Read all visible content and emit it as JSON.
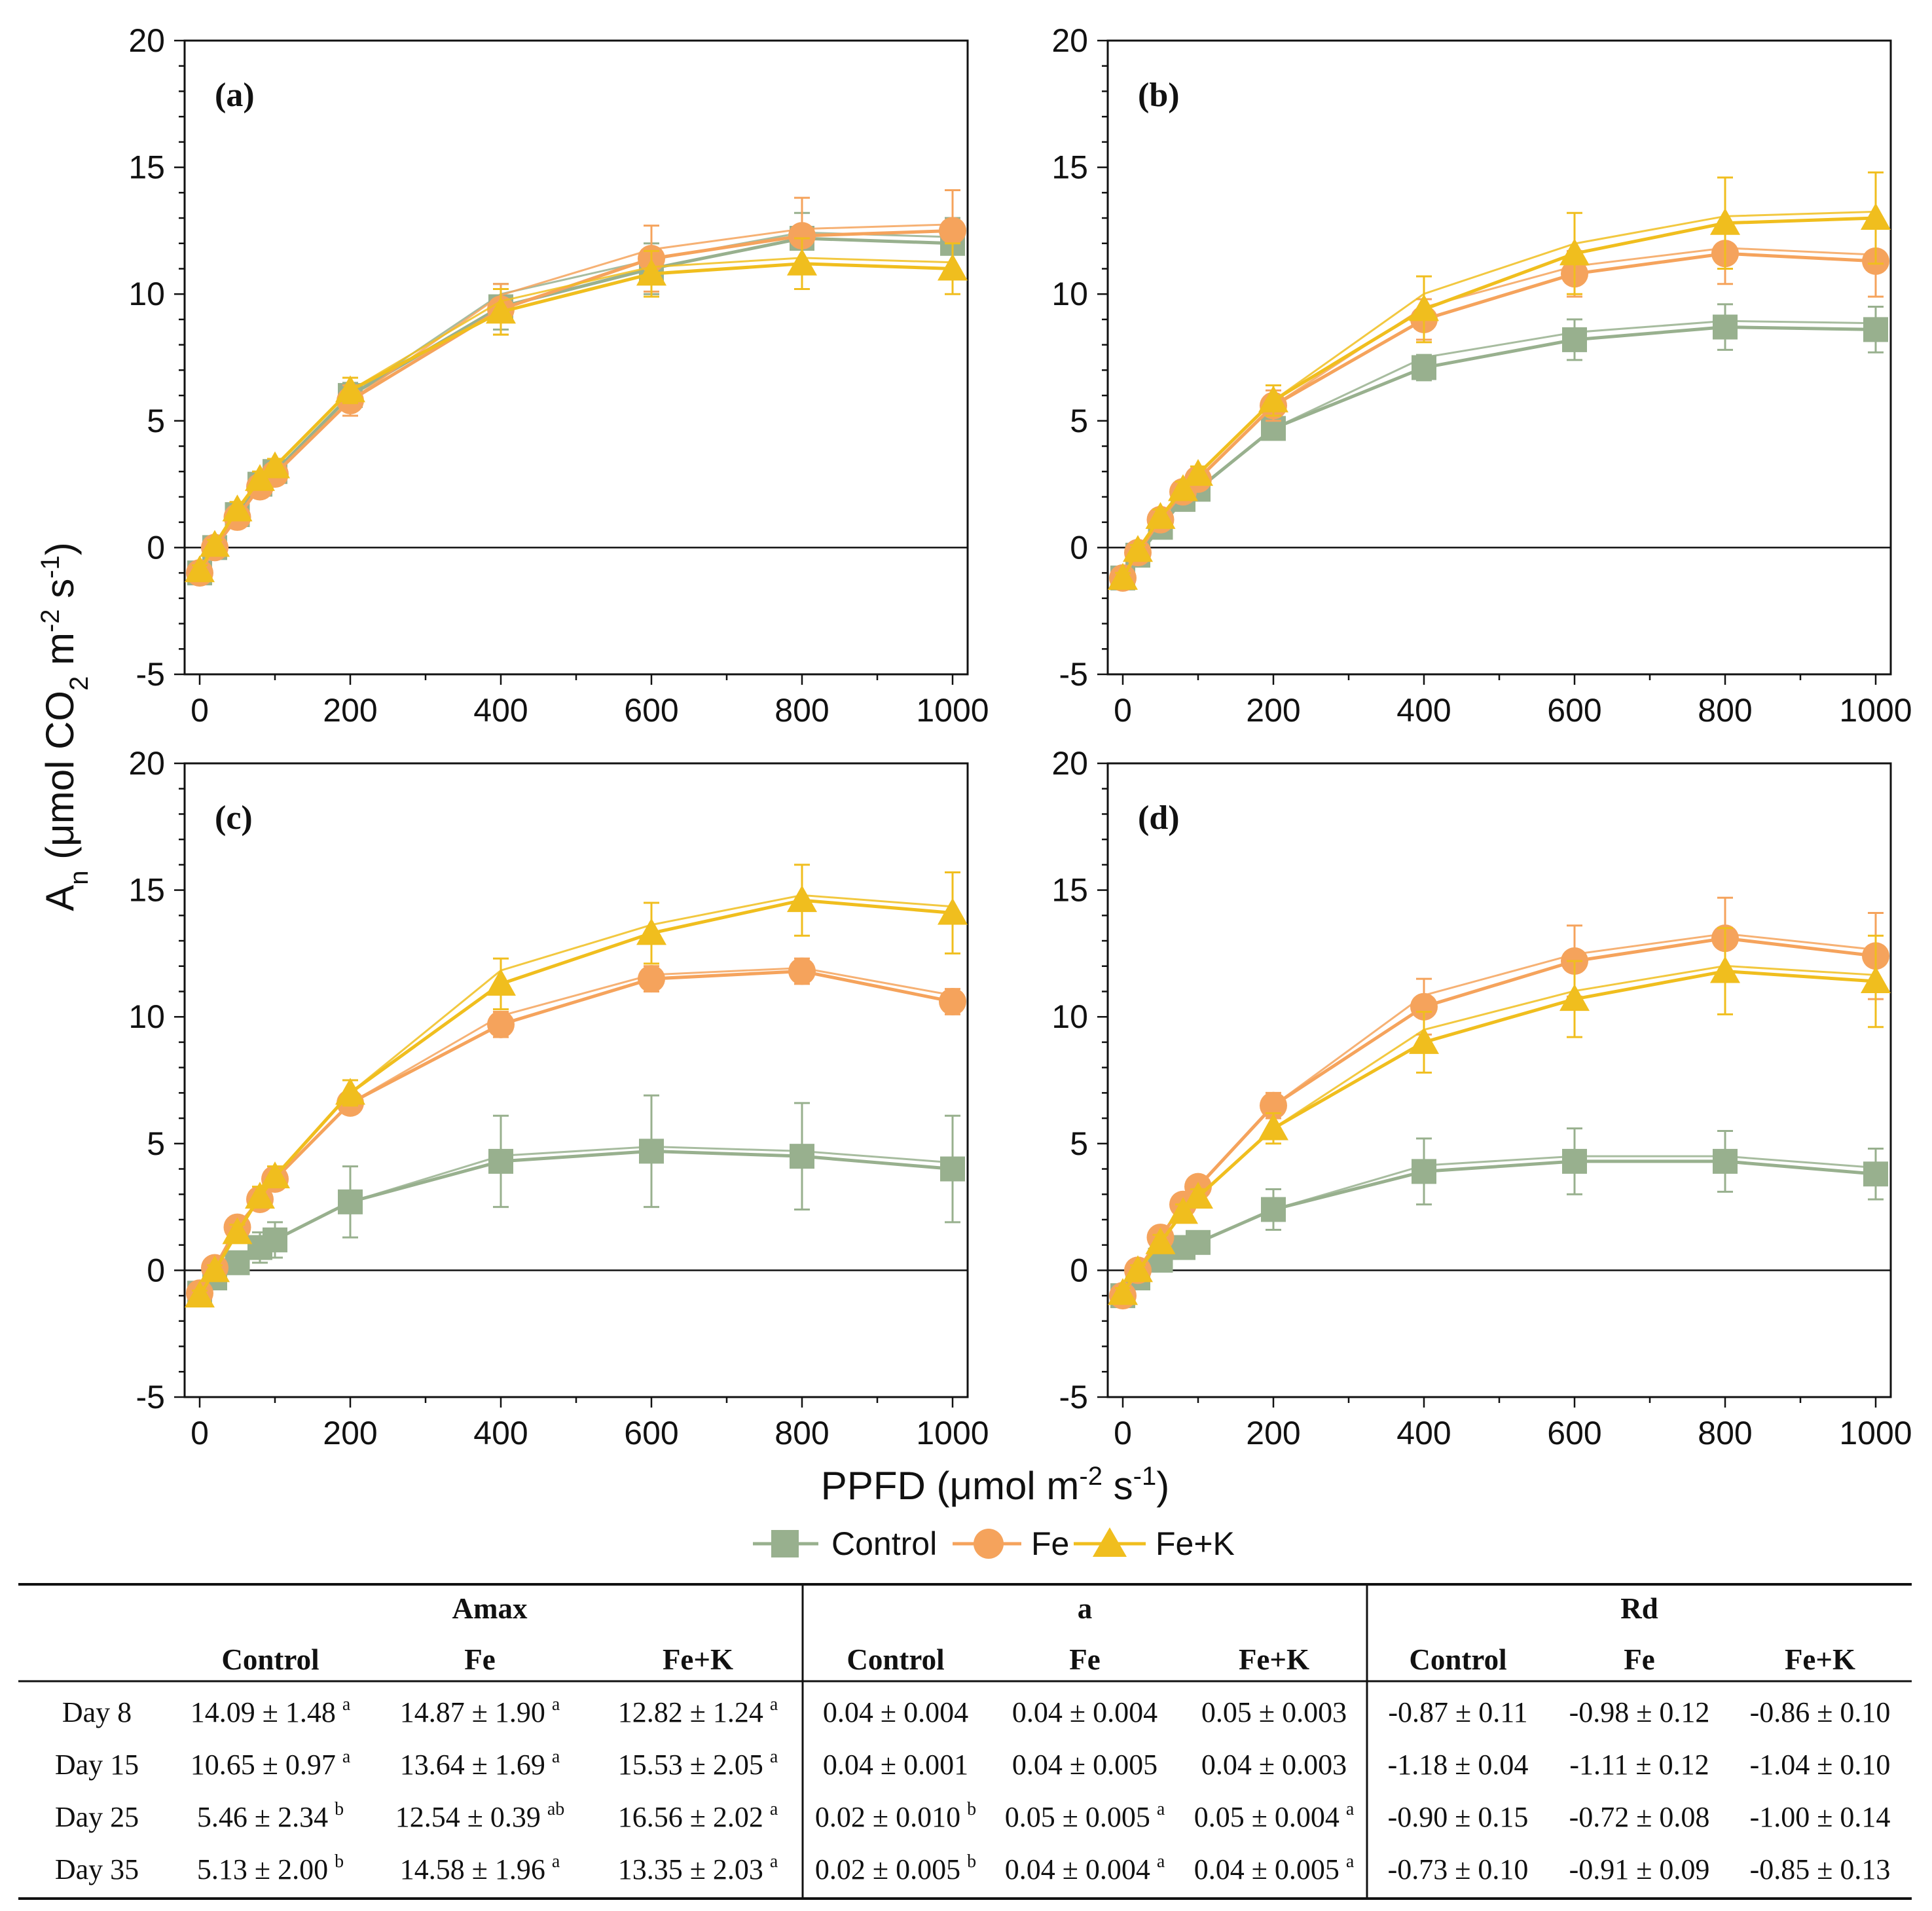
{
  "chart_data": [
    {
      "type": "line",
      "panel_label": "(a)",
      "x": [
        0,
        20,
        50,
        80,
        100,
        200,
        400,
        600,
        800,
        1000
      ],
      "xlim": [
        -20,
        1020
      ],
      "ylim": [
        -5,
        20
      ],
      "xticks": [
        0,
        200,
        400,
        600,
        800,
        1000
      ],
      "yticks": [
        -5,
        0,
        5,
        10,
        15,
        20
      ],
      "series": [
        {
          "name": "Control",
          "values": [
            -1.0,
            0.0,
            1.3,
            2.5,
            3.0,
            6.0,
            9.5,
            11.0,
            12.2,
            12.0
          ],
          "err": [
            0.2,
            0.2,
            0.3,
            0.3,
            0.3,
            0.5,
            0.9,
            1.0,
            1.0,
            1.0
          ]
        },
        {
          "name": "Fe",
          "values": [
            -1.0,
            0.0,
            1.2,
            2.4,
            2.9,
            5.8,
            9.4,
            11.4,
            12.3,
            12.5
          ],
          "err": [
            0.2,
            0.2,
            0.3,
            0.3,
            0.3,
            0.6,
            1.0,
            1.3,
            1.5,
            1.6
          ]
        },
        {
          "name": "Fe+K",
          "values": [
            -0.9,
            0.1,
            1.5,
            2.7,
            3.2,
            6.2,
            9.3,
            10.8,
            11.2,
            11.0
          ],
          "err": [
            0.2,
            0.2,
            0.3,
            0.3,
            0.3,
            0.5,
            0.9,
            0.9,
            1.0,
            1.0
          ]
        }
      ]
    },
    {
      "type": "line",
      "panel_label": "(b)",
      "x": [
        0,
        20,
        50,
        80,
        100,
        200,
        400,
        600,
        800,
        1000
      ],
      "xlim": [
        -20,
        1020
      ],
      "ylim": [
        -5,
        20
      ],
      "xticks": [
        0,
        200,
        400,
        600,
        800,
        1000
      ],
      "yticks": [
        -5,
        0,
        5,
        10,
        15,
        20
      ],
      "series": [
        {
          "name": "Control",
          "values": [
            -1.2,
            -0.3,
            0.8,
            1.9,
            2.3,
            4.7,
            7.1,
            8.2,
            8.7,
            8.6
          ],
          "err": [
            0.2,
            0.2,
            0.2,
            0.3,
            0.3,
            0.3,
            0.5,
            0.8,
            0.9,
            0.9
          ]
        },
        {
          "name": "Fe",
          "values": [
            -1.2,
            -0.2,
            1.1,
            2.2,
            2.7,
            5.6,
            9.0,
            10.8,
            11.6,
            11.3
          ],
          "err": [
            0.2,
            0.2,
            0.3,
            0.3,
            0.3,
            0.6,
            0.8,
            0.9,
            1.2,
            1.4
          ]
        },
        {
          "name": "Fe+K",
          "values": [
            -1.2,
            -0.1,
            1.2,
            2.3,
            2.9,
            5.8,
            9.4,
            11.6,
            12.8,
            13.0
          ],
          "err": [
            0.2,
            0.2,
            0.3,
            0.3,
            0.3,
            0.6,
            1.3,
            1.6,
            1.8,
            1.8
          ]
        }
      ]
    },
    {
      "type": "line",
      "panel_label": "(c)",
      "x": [
        0,
        20,
        50,
        80,
        100,
        200,
        400,
        600,
        800,
        1000
      ],
      "xlim": [
        -20,
        1020
      ],
      "ylim": [
        -5,
        20
      ],
      "xticks": [
        0,
        200,
        400,
        600,
        800,
        1000
      ],
      "yticks": [
        -5,
        0,
        5,
        10,
        15,
        20
      ],
      "series": [
        {
          "name": "Control",
          "values": [
            -0.9,
            -0.3,
            0.3,
            0.9,
            1.2,
            2.7,
            4.3,
            4.7,
            4.5,
            4.0
          ],
          "err": [
            0.2,
            0.3,
            0.4,
            0.6,
            0.7,
            1.4,
            1.8,
            2.2,
            2.1,
            2.1
          ]
        },
        {
          "name": "Fe",
          "values": [
            -0.9,
            0.1,
            1.7,
            2.8,
            3.6,
            6.6,
            9.7,
            11.5,
            11.8,
            10.6
          ],
          "err": [
            0.2,
            0.2,
            0.3,
            0.3,
            0.3,
            0.4,
            0.5,
            0.5,
            0.5,
            0.5
          ]
        },
        {
          "name": "Fe+K",
          "values": [
            -1.0,
            0.0,
            1.5,
            2.9,
            3.7,
            7.0,
            11.3,
            13.3,
            14.6,
            14.1
          ],
          "err": [
            0.2,
            0.2,
            0.3,
            0.4,
            0.4,
            0.5,
            1.0,
            1.2,
            1.4,
            1.6
          ]
        }
      ]
    },
    {
      "type": "line",
      "panel_label": "(d)",
      "x": [
        0,
        20,
        50,
        80,
        100,
        200,
        400,
        600,
        800,
        1000
      ],
      "xlim": [
        -20,
        1020
      ],
      "ylim": [
        -5,
        20
      ],
      "xticks": [
        0,
        200,
        400,
        600,
        800,
        1000
      ],
      "yticks": [
        -5,
        0,
        5,
        10,
        15,
        20
      ],
      "series": [
        {
          "name": "Control",
          "values": [
            -1.0,
            -0.3,
            0.4,
            0.9,
            1.1,
            2.4,
            3.9,
            4.3,
            4.3,
            3.8
          ],
          "err": [
            0.2,
            0.2,
            0.3,
            0.4,
            0.4,
            0.8,
            1.3,
            1.3,
            1.2,
            1.0
          ]
        },
        {
          "name": "Fe",
          "values": [
            -1.0,
            0.0,
            1.3,
            2.6,
            3.3,
            6.5,
            10.4,
            12.2,
            13.1,
            12.4
          ],
          "err": [
            0.2,
            0.2,
            0.3,
            0.3,
            0.3,
            0.5,
            1.1,
            1.4,
            1.6,
            1.7
          ]
        },
        {
          "name": "Fe+K",
          "values": [
            -0.9,
            0.0,
            1.1,
            2.3,
            2.9,
            5.6,
            9.0,
            10.7,
            11.8,
            11.4
          ],
          "err": [
            0.2,
            0.2,
            0.3,
            0.3,
            0.3,
            0.6,
            1.2,
            1.5,
            1.7,
            1.8
          ]
        }
      ]
    }
  ],
  "axes": {
    "y_label_main": "A",
    "y_label_sub": "n",
    "y_label_rest": " (μmol CO",
    "y_label_co2_sub": "2",
    "y_label_m": " m",
    "y_label_m_sup": "-2",
    "y_label_s": " s",
    "y_label_s_sup": "-1",
    "y_label_close": ")",
    "x_label_main": "PPFD (μmol m",
    "x_label_m_sup": "-2",
    "x_label_s": " s",
    "x_label_s_sup": "-1",
    "x_label_close": ")"
  },
  "legend": {
    "control": "Control",
    "fe": "Fe",
    "fek": "Fe+K"
  },
  "colors": {
    "control": "#98b08e",
    "fe": "#f5a35c",
    "fek": "#f0be1e"
  },
  "table": {
    "group_headers": [
      "Amax",
      "a",
      "Rd"
    ],
    "col_headers": [
      "Control",
      "Fe",
      "Fe+K",
      "Control",
      "Fe",
      "Fe+K",
      "Control",
      "Fe",
      "Fe+K"
    ],
    "rows": [
      {
        "label": "Day 8",
        "cells": [
          {
            "v": "14.09 ± 1.48",
            "s": "a"
          },
          {
            "v": "14.87 ± 1.90",
            "s": "a"
          },
          {
            "v": "12.82 ± 1.24",
            "s": "a"
          },
          {
            "v": "0.04 ± 0.004",
            "s": ""
          },
          {
            "v": "0.04 ± 0.004",
            "s": ""
          },
          {
            "v": "0.05 ± 0.003",
            "s": ""
          },
          {
            "v": "-0.87 ± 0.11",
            "s": ""
          },
          {
            "v": "-0.98 ± 0.12",
            "s": ""
          },
          {
            "v": "-0.86 ± 0.10",
            "s": ""
          }
        ]
      },
      {
        "label": "Day 15",
        "cells": [
          {
            "v": "10.65 ± 0.97",
            "s": "a"
          },
          {
            "v": "13.64 ± 1.69",
            "s": "a"
          },
          {
            "v": "15.53 ± 2.05",
            "s": "a"
          },
          {
            "v": "0.04 ± 0.001",
            "s": ""
          },
          {
            "v": "0.04 ± 0.005",
            "s": ""
          },
          {
            "v": "0.04 ± 0.003",
            "s": ""
          },
          {
            "v": "-1.18 ± 0.04",
            "s": ""
          },
          {
            "v": "-1.11 ± 0.12",
            "s": ""
          },
          {
            "v": "-1.04 ± 0.10",
            "s": ""
          }
        ]
      },
      {
        "label": "Day 25",
        "cells": [
          {
            "v": "5.46 ± 2.34",
            "s": "b"
          },
          {
            "v": "12.54 ± 0.39",
            "s": "ab"
          },
          {
            "v": "16.56 ± 2.02",
            "s": "a"
          },
          {
            "v": "0.02 ± 0.010",
            "s": "b"
          },
          {
            "v": "0.05 ± 0.005",
            "s": "a"
          },
          {
            "v": "0.05 ± 0.004",
            "s": "a"
          },
          {
            "v": "-0.90 ± 0.15",
            "s": ""
          },
          {
            "v": "-0.72 ± 0.08",
            "s": ""
          },
          {
            "v": "-1.00 ± 0.14",
            "s": ""
          }
        ]
      },
      {
        "label": "Day 35",
        "cells": [
          {
            "v": "5.13 ± 2.00",
            "s": "b"
          },
          {
            "v": "14.58 ± 1.96",
            "s": "a"
          },
          {
            "v": "13.35 ± 2.03",
            "s": "a"
          },
          {
            "v": "0.02 ± 0.005",
            "s": "b"
          },
          {
            "v": "0.04 ± 0.004",
            "s": "a"
          },
          {
            "v": "0.04 ± 0.005",
            "s": "a"
          },
          {
            "v": "-0.73 ± 0.10",
            "s": ""
          },
          {
            "v": "-0.91 ± 0.09",
            "s": ""
          },
          {
            "v": "-0.85 ± 0.13",
            "s": ""
          }
        ]
      }
    ]
  }
}
